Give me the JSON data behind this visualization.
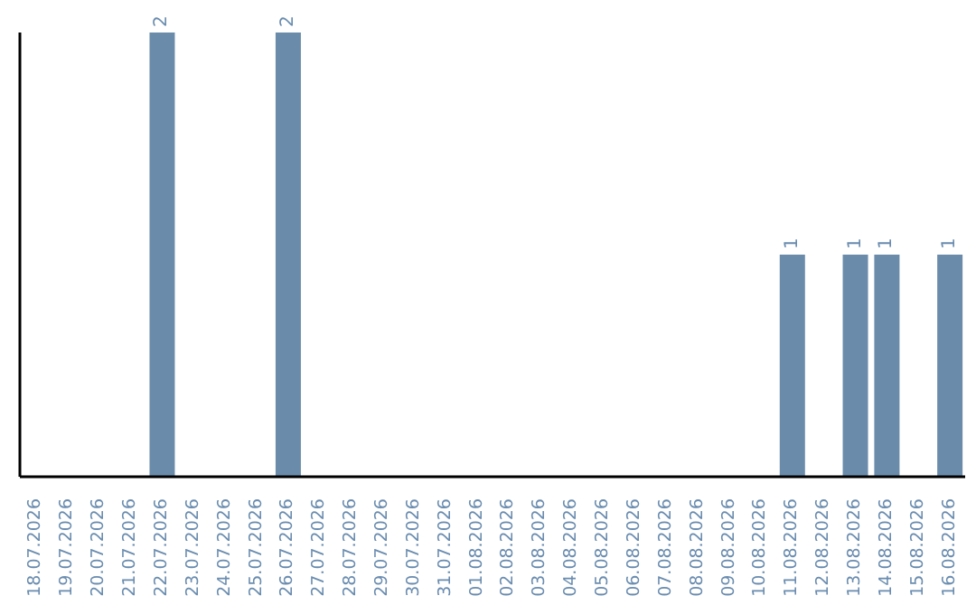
{
  "chart_data": {
    "type": "bar",
    "categories": [
      "18.07.2026",
      "19.07.2026",
      "20.07.2026",
      "21.07.2026",
      "22.07.2026",
      "23.07.2026",
      "24.07.2026",
      "25.07.2026",
      "26.07.2026",
      "27.07.2026",
      "28.07.2026",
      "29.07.2026",
      "30.07.2026",
      "31.07.2026",
      "01.08.2026",
      "02.08.2026",
      "03.08.2026",
      "04.08.2026",
      "05.08.2026",
      "06.08.2026",
      "07.08.2026",
      "08.08.2026",
      "09.08.2026",
      "10.08.2026",
      "11.08.2026",
      "12.08.2026",
      "13.08.2026",
      "14.08.2026",
      "15.08.2026",
      "16.08.2026"
    ],
    "values": [
      0,
      0,
      0,
      0,
      2,
      0,
      0,
      0,
      2,
      0,
      0,
      0,
      0,
      0,
      0,
      0,
      0,
      0,
      0,
      0,
      0,
      0,
      0,
      0,
      1,
      0,
      1,
      1,
      0,
      1
    ],
    "value_labels": [
      null,
      null,
      null,
      null,
      "2",
      null,
      null,
      null,
      "2",
      null,
      null,
      null,
      null,
      null,
      null,
      null,
      null,
      null,
      null,
      null,
      null,
      null,
      null,
      null,
      "1",
      null,
      "1",
      "1",
      null,
      "1"
    ],
    "color": "#6a8caa",
    "tick_labels": "x",
    "grid": false,
    "legend": false
  }
}
